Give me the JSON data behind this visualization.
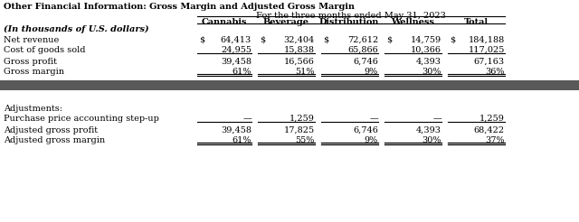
{
  "title": "Other Financial Information: Gross Margin and Adjusted Gross Margin",
  "subtitle": "For the three months ended May 31, 2023",
  "col_headers": [
    "Cannabis",
    "Beverage",
    "Distribution",
    "Wellness",
    "Total"
  ],
  "net_revenue": [
    "$",
    "64,413",
    "$",
    "32,404",
    "$",
    "72,612",
    "$",
    "14,759",
    "$",
    "184,188"
  ],
  "cogs": [
    "",
    "24,955",
    "",
    "15,838",
    "",
    "65,866",
    "",
    "10,366",
    "",
    "117,025"
  ],
  "gross_profit": [
    "",
    "39,458",
    "",
    "16,566",
    "",
    "6,746",
    "",
    "4,393",
    "",
    "67,163"
  ],
  "gross_margin": [
    "",
    "61%",
    "",
    "51%",
    "",
    "9%",
    "",
    "30%",
    "",
    "36%"
  ],
  "pp_step_up": [
    "",
    "—",
    "",
    "1,259",
    "",
    "—",
    "",
    "—",
    "",
    "1,259"
  ],
  "adj_gp": [
    "",
    "39,458",
    "",
    "17,825",
    "",
    "6,746",
    "",
    "4,393",
    "",
    "68,422"
  ],
  "adj_gm": [
    "",
    "61%",
    "",
    "55%",
    "",
    "9%",
    "",
    "30%",
    "",
    "37%"
  ],
  "divider_color": "#595959",
  "bg_color": "#ffffff",
  "fs": 7.0
}
